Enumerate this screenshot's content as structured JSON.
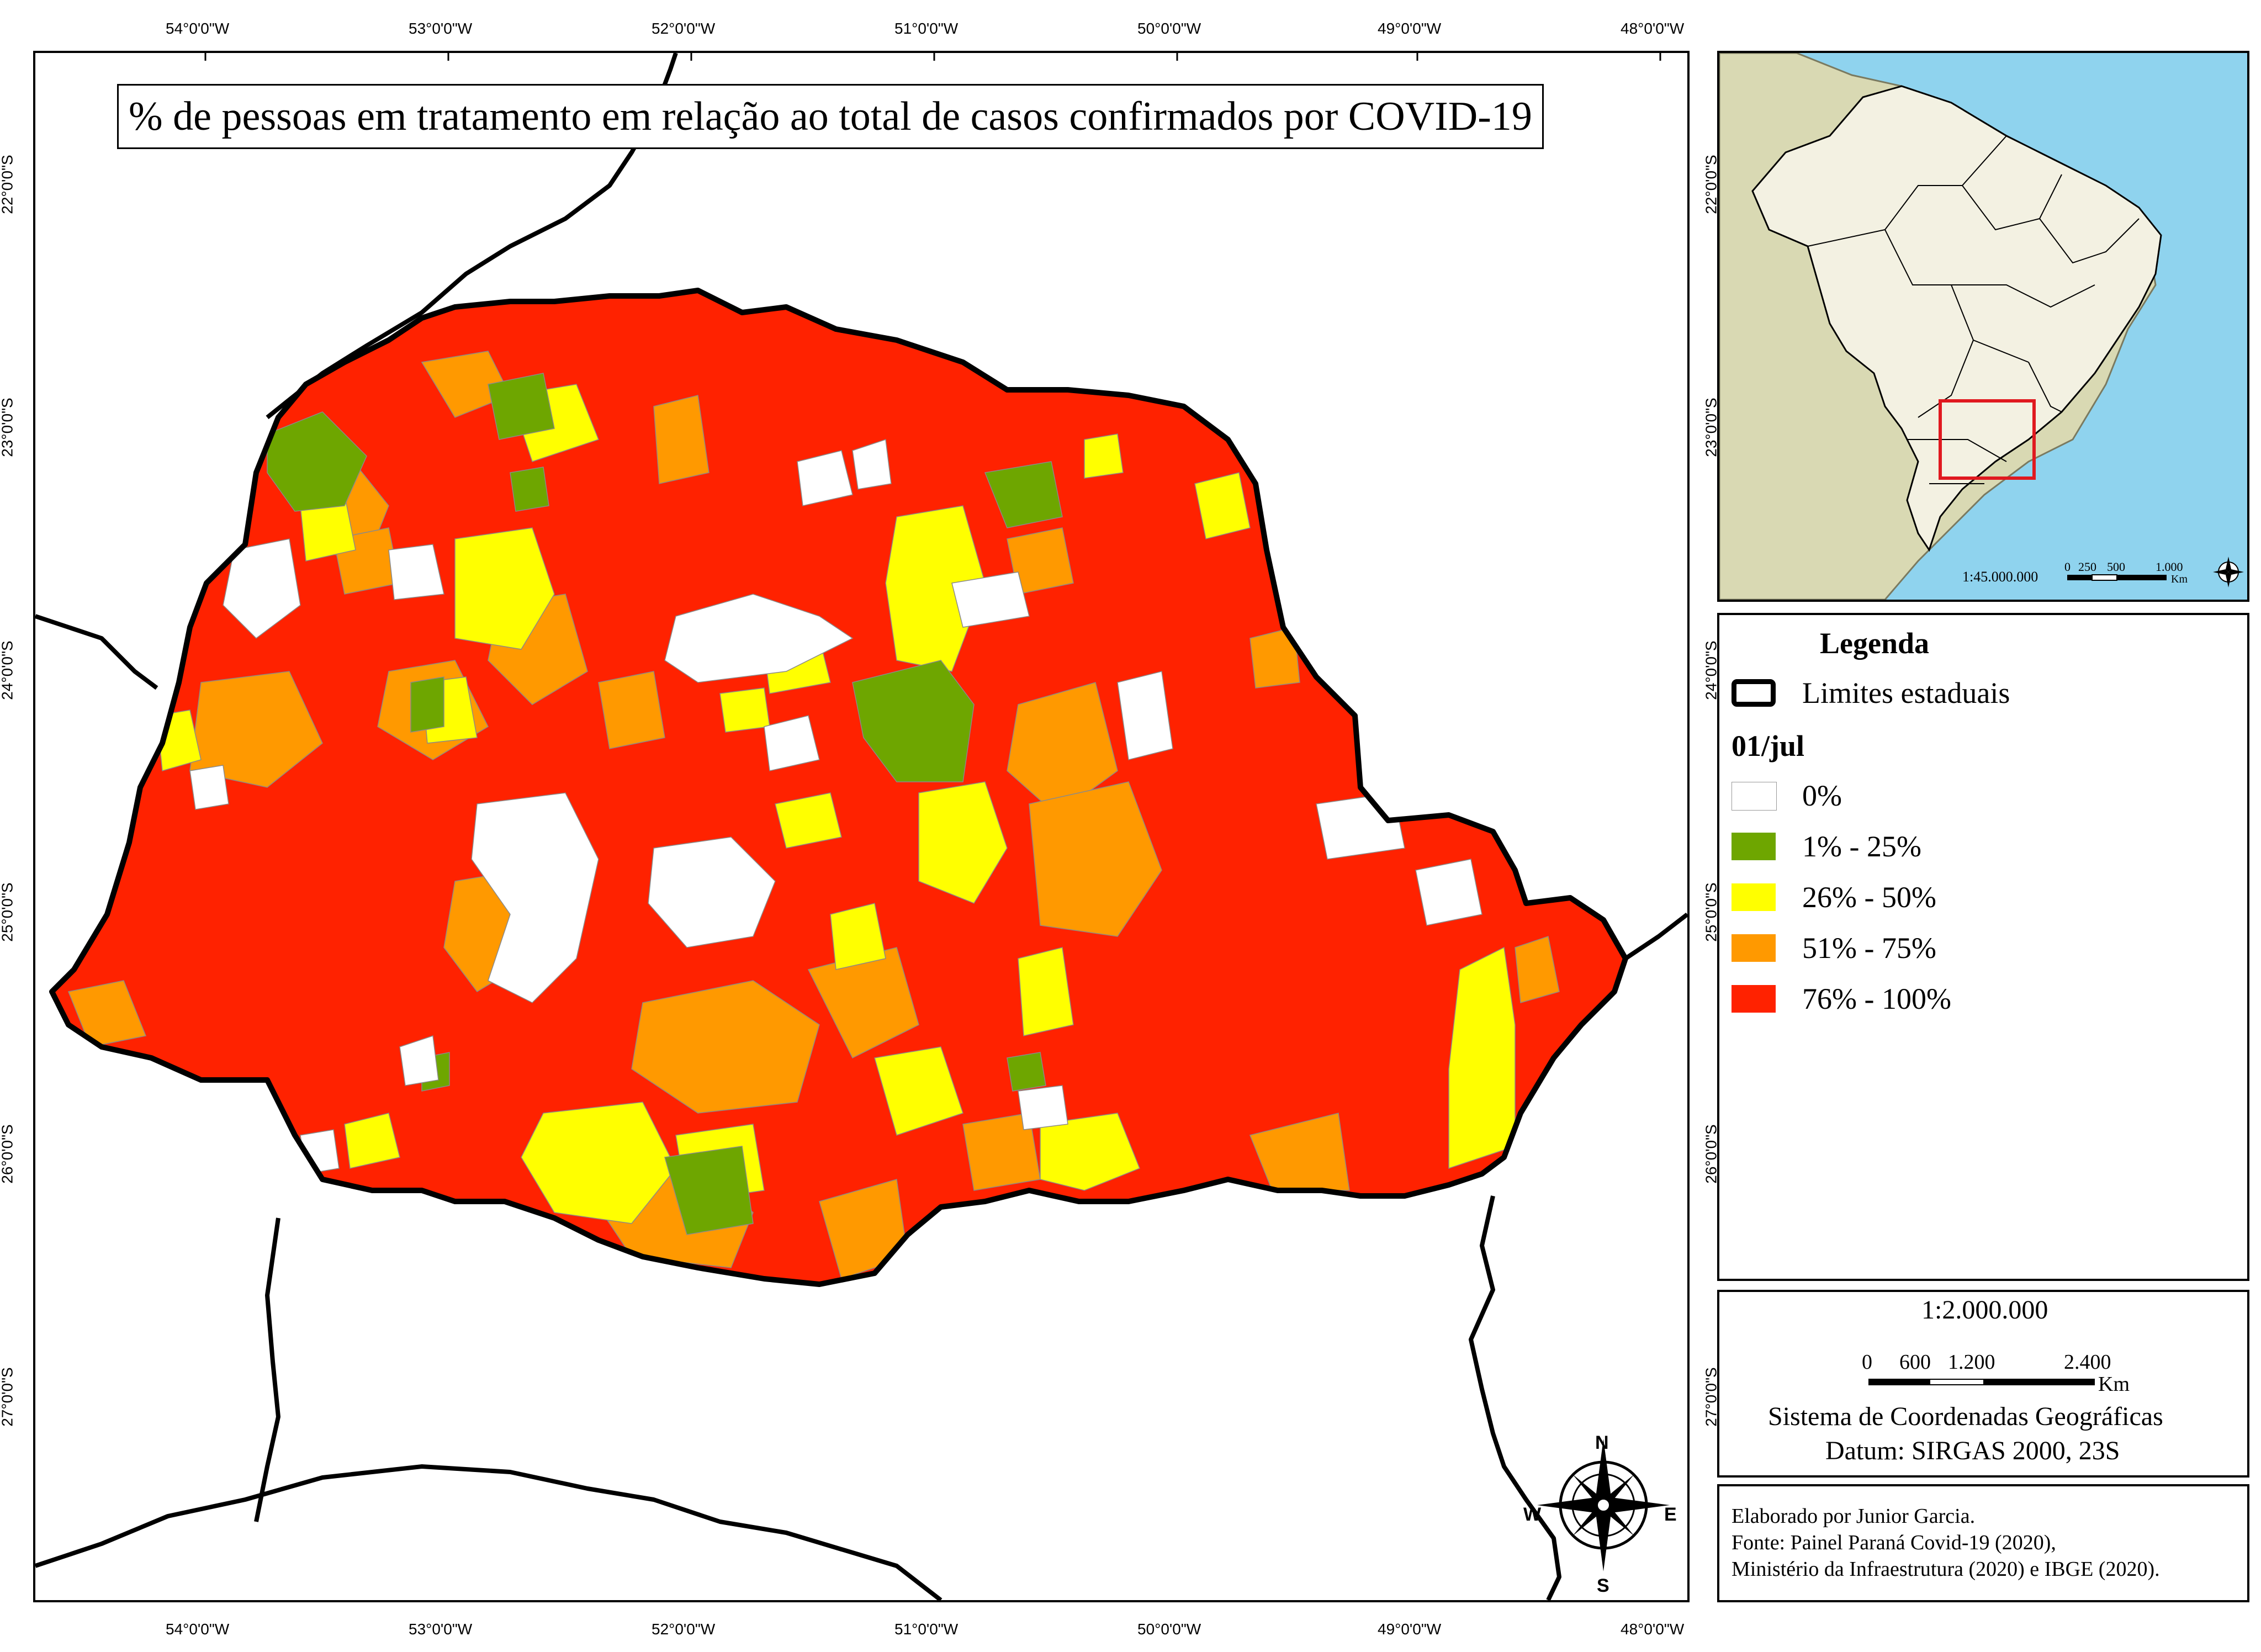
{
  "title": "% de pessoas em tratamento em relação ao total de casos confirmados por COVID-19",
  "graticule": {
    "longitudes": [
      "54°0'0\"W",
      "53°0'0\"W",
      "52°0'0\"W",
      "51°0'0\"W",
      "50°0'0\"W",
      "49°0'0\"W",
      "48°0'0\"W"
    ],
    "latitudes": [
      "22°0'0\"S",
      "23°0'0\"S",
      "24°0'0\"S",
      "25°0'0\"S",
      "26°0'0\"S",
      "27°0'0\"S"
    ]
  },
  "inset": {
    "scale": "1:45.000.000",
    "scalebar_labels": [
      "0",
      "250",
      "500",
      "1.000"
    ],
    "scalebar_unit": "Km",
    "highlight_color": "#e0191f"
  },
  "legend": {
    "title": "Legenda",
    "boundary_label": "Limites estaduais",
    "date": "01/jul",
    "classes": [
      {
        "label": "0%",
        "color": "#ffffff"
      },
      {
        "label": "1% - 25%",
        "color": "#6ea600"
      },
      {
        "label": "26% - 50%",
        "color": "#ffff00"
      },
      {
        "label": "51% - 75%",
        "color": "#ff9900"
      },
      {
        "label": "76% - 100%",
        "color": "#ff2200"
      }
    ]
  },
  "scale_info": {
    "scale": "1:2.000.000",
    "scalebar_labels": [
      "0",
      "600",
      "1.200",
      "2.400"
    ],
    "unit": "Km",
    "crs_line1": "Sistema de Coordenadas Geográficas",
    "crs_line2": "Datum: SIRGAS 2000, 23S"
  },
  "credits": {
    "line1": "Elaborado por Junior Garcia.",
    "line2": "Fonte: Painel Paraná Covid-19 (2020),",
    "line3": "Ministério da Infraestrutura (2020) e IBGE (2020)."
  },
  "compass": {
    "n": "N",
    "s": "S",
    "e": "E",
    "w": "W"
  },
  "colors": {
    "red": "#ff2200",
    "orange": "#ff9900",
    "yellow": "#ffff00",
    "green": "#6ea600",
    "white": "#ffffff",
    "ocean": "#8fd3ee",
    "south_america": "#d9d9b3",
    "brazil": "#f3f1e2"
  }
}
